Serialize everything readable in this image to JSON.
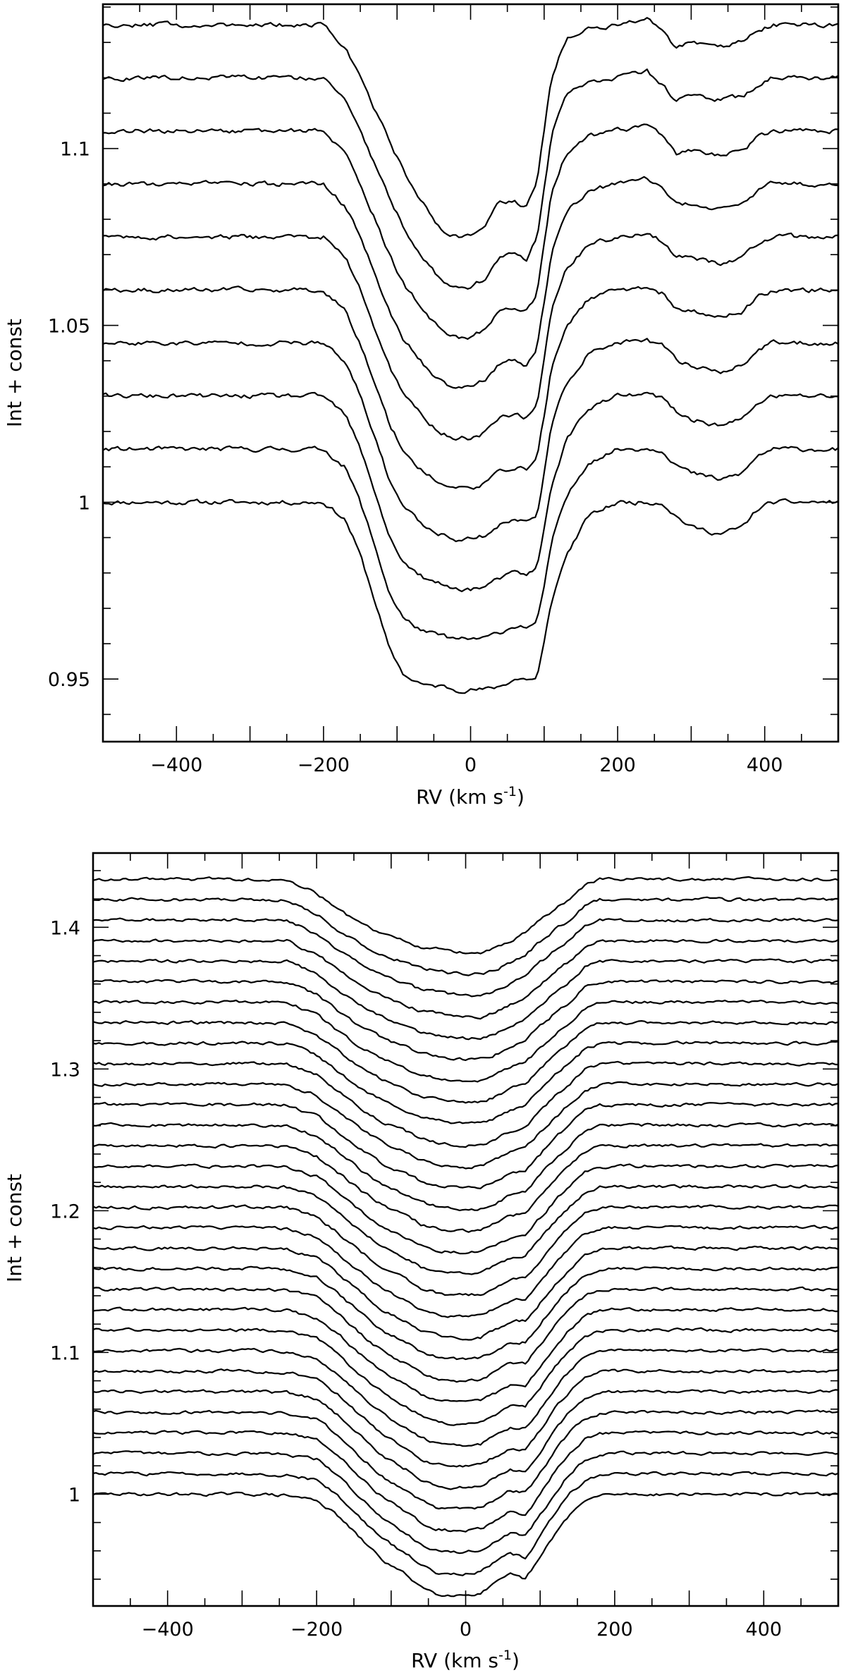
{
  "chart_data": [
    {
      "type": "line",
      "xlabel": "RV (km s",
      "xlabel_sup": "-1",
      "xlabel_close": ")",
      "ylabel": "Int + const",
      "xlim": [
        -500,
        500
      ],
      "ylim": [
        0.9323,
        1.1408
      ],
      "xticks": [
        -400,
        -200,
        0,
        200,
        400
      ],
      "xtick_labels": [
        "−400",
        "−200",
        "0",
        "200",
        "400"
      ],
      "yticks": [
        0.95,
        1,
        1.05,
        1.1
      ],
      "ytick_labels": [
        "0.95",
        "1",
        "1.05",
        "1.1"
      ],
      "grid": false,
      "n_series": 10,
      "series_offset": 0.015,
      "series_ref_x": -500,
      "profile_rv": [
        -500,
        -300,
        -200,
        -170,
        -150,
        -130,
        -110,
        -90,
        -60,
        -40,
        -20,
        0,
        20,
        40,
        60,
        75,
        90,
        100,
        110,
        130,
        160,
        200,
        240,
        260,
        280,
        300,
        340,
        370,
        390,
        410,
        450,
        500
      ],
      "profile_first": [
        1.0,
        1.0,
        1.0,
        0.995,
        0.985,
        0.972,
        0.958,
        0.951,
        0.948,
        0.948,
        0.947,
        0.947,
        0.947,
        0.948,
        0.95,
        0.95,
        0.95,
        0.96,
        0.972,
        0.985,
        0.996,
        1.0,
        1.0,
        1.0,
        0.996,
        0.993,
        0.991,
        0.993,
        0.998,
        1.0,
        1.0,
        1.0
      ],
      "profile_last": [
        1.135,
        1.135,
        1.135,
        1.128,
        1.12,
        1.111,
        1.102,
        1.093,
        1.083,
        1.077,
        1.075,
        1.075,
        1.078,
        1.085,
        1.085,
        1.083,
        1.09,
        1.105,
        1.12,
        1.131,
        1.134,
        1.135,
        1.137,
        1.133,
        1.128,
        1.13,
        1.129,
        1.13,
        1.133,
        1.135,
        1.135,
        1.135
      ]
    },
    {
      "type": "line",
      "xlabel": "RV (km s",
      "xlabel_sup": "-1",
      "xlabel_close": ")",
      "ylabel": "Int + const",
      "xlim": [
        -500,
        500
      ],
      "ylim": [
        0.9211,
        1.4524
      ],
      "xticks": [
        -400,
        -200,
        0,
        200,
        400
      ],
      "xtick_labels": [
        "−400",
        "−200",
        "0",
        "200",
        "400"
      ],
      "yticks": [
        1,
        1.1,
        1.2,
        1.3,
        1.4
      ],
      "ytick_labels": [
        "1",
        "1.1",
        "1.2",
        "1.3",
        "1.4"
      ],
      "grid": false,
      "n_series": 31,
      "series_offset": 0.01448,
      "series_ref_x": -500,
      "profile_rv": [
        -500,
        -280,
        -240,
        -200,
        -170,
        -140,
        -110,
        -80,
        -60,
        -40,
        -20,
        0,
        20,
        40,
        60,
        80,
        100,
        120,
        140,
        160,
        180,
        200,
        250,
        500
      ],
      "profile_first": [
        1.0,
        1.0,
        0.999,
        0.996,
        0.984,
        0.968,
        0.953,
        0.943,
        0.935,
        0.93,
        0.929,
        0.929,
        0.93,
        0.937,
        0.943,
        0.94,
        0.955,
        0.972,
        0.986,
        0.995,
        0.999,
        1.0,
        1.0,
        1.0
      ],
      "profile_last": [
        1.434,
        1.434,
        1.434,
        1.424,
        1.412,
        1.402,
        1.395,
        1.39,
        1.386,
        1.385,
        1.383,
        1.382,
        1.382,
        1.385,
        1.39,
        1.396,
        1.405,
        1.413,
        1.42,
        1.43,
        1.434,
        1.434,
        1.434,
        1.434
      ]
    }
  ]
}
